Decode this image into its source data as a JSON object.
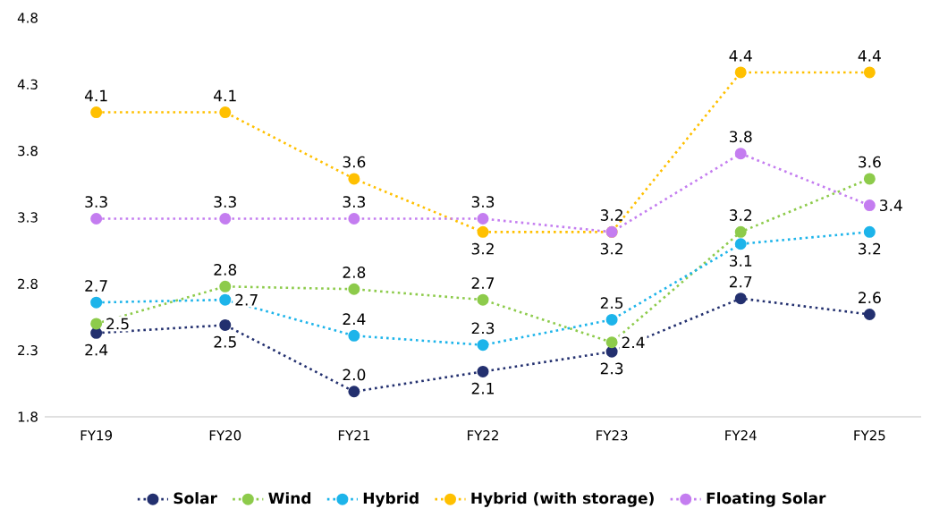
{
  "chart_data": {
    "type": "line",
    "categories": [
      "FY19",
      "FY20",
      "FY21",
      "FY22",
      "FY23",
      "FY24",
      "FY25"
    ],
    "series": [
      {
        "name": "Solar",
        "color": "#23306f",
        "values": [
          2.43,
          2.49,
          1.99,
          2.14,
          2.29,
          2.69,
          2.57
        ],
        "value_labels": [
          "2.4",
          "2.5",
          "2.0",
          "2.1",
          "2.3",
          "2.7",
          "2.6"
        ]
      },
      {
        "name": "Wind",
        "color": "#8dcb4b",
        "values": [
          2.5,
          2.78,
          2.76,
          2.68,
          2.36,
          3.19,
          3.59
        ],
        "value_labels": [
          "2.5",
          "2.8",
          "2.8",
          "2.7",
          "2.4",
          "3.2",
          "3.6"
        ]
      },
      {
        "name": "Hybrid",
        "color": "#1db4ea",
        "values": [
          2.66,
          2.68,
          2.41,
          2.34,
          2.53,
          3.1,
          3.19
        ],
        "value_labels": [
          "2.7",
          "2.7",
          "2.4",
          "2.3",
          "2.5",
          "3.1",
          "3.2"
        ]
      },
      {
        "name": "Hybrid (with storage)",
        "color": "#ffc000",
        "values": [
          4.09,
          4.09,
          3.59,
          3.19,
          3.19,
          4.39,
          4.39
        ],
        "value_labels": [
          "4.1",
          "4.1",
          "3.6",
          "3.2",
          "3.2",
          "4.4",
          "4.4"
        ]
      },
      {
        "name": "Floating Solar",
        "color": "#c47df0",
        "values": [
          3.29,
          3.29,
          3.29,
          3.29,
          3.19,
          3.78,
          3.39
        ],
        "value_labels": [
          "3.3",
          "3.3",
          "3.3",
          "3.3",
          "3.2",
          "3.8",
          "3.4"
        ]
      }
    ],
    "ylim": [
      1.8,
      4.8
    ],
    "yticks": [
      1.8,
      2.3,
      2.8,
      3.3,
      3.8,
      4.3,
      4.8
    ],
    "grid": false,
    "legend": "bottom",
    "marker": "circle",
    "line_style": "dotted"
  }
}
